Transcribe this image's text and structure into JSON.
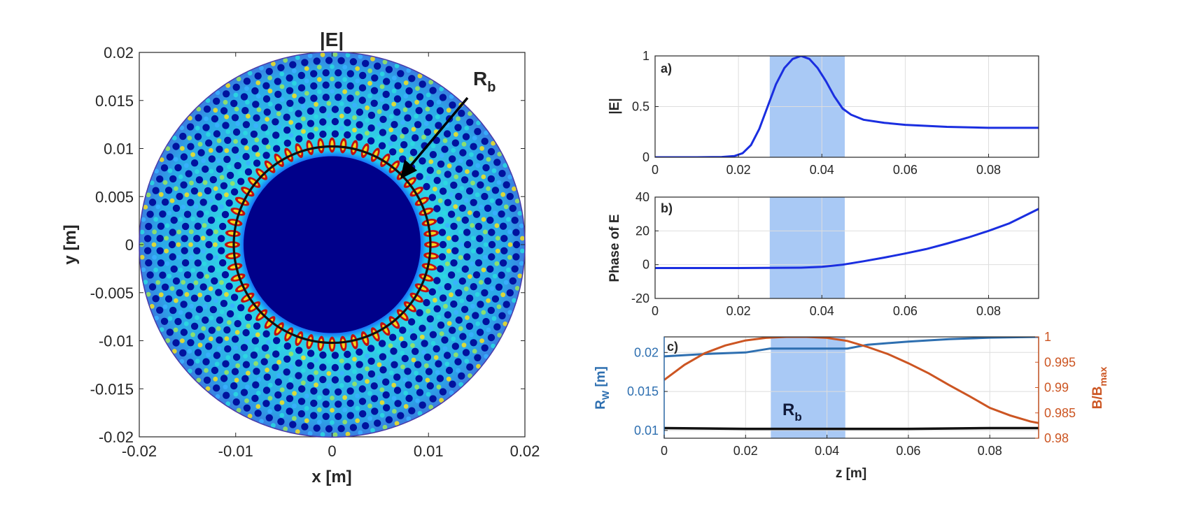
{
  "colors": {
    "curve_blue": "#1a2ee0",
    "rw_blue": "#2e6fb0",
    "bratio_orange": "#cc5522",
    "rb_black": "#111111",
    "band_fill": "#a9c9f5",
    "field_background": "#00008f"
  },
  "chart_data": [
    {
      "type": "heatmap",
      "title": "|E|",
      "xlabel": "x [m]",
      "ylabel": "y [m]",
      "xlim": [
        -0.02,
        0.02
      ],
      "ylim": [
        -0.02,
        0.02
      ],
      "xticks": [
        "-0.02",
        "-0.01",
        "0",
        "0.01",
        "0.02"
      ],
      "yticks": [
        "0.02",
        "0.015",
        "0.01",
        "0.005",
        "0",
        "-0.005",
        "-0.01",
        "-0.015",
        "-0.02"
      ],
      "wall_radius": 0.02,
      "Rb_radius": 0.0102,
      "colormap": "jet",
      "annotation": {
        "text": "R",
        "subscript": "b",
        "points_to": [
          0.0072,
          0.0078
        ]
      }
    },
    {
      "type": "line",
      "panel_label": "a)",
      "ylabel": "|E|",
      "xlabel": "",
      "xlim": [
        0,
        0.092
      ],
      "ylim": [
        0,
        1
      ],
      "xticks": [
        "0",
        "0.02",
        "0.04",
        "0.06",
        "0.08"
      ],
      "yticks": [
        "1",
        "0.5",
        "0"
      ],
      "highlight_band": [
        0.0275,
        0.0455
      ],
      "x": [
        0,
        0.01,
        0.016,
        0.019,
        0.021,
        0.023,
        0.025,
        0.027,
        0.029,
        0.031,
        0.033,
        0.035,
        0.037,
        0.039,
        0.041,
        0.043,
        0.045,
        0.047,
        0.05,
        0.055,
        0.06,
        0.07,
        0.08,
        0.092
      ],
      "y": [
        0.0,
        0.0,
        0.003,
        0.012,
        0.04,
        0.12,
        0.28,
        0.5,
        0.72,
        0.88,
        0.97,
        1.0,
        0.97,
        0.88,
        0.75,
        0.6,
        0.48,
        0.42,
        0.37,
        0.34,
        0.32,
        0.3,
        0.29,
        0.29
      ]
    },
    {
      "type": "line",
      "panel_label": "b)",
      "ylabel": "Phase of E",
      "xlabel": "",
      "xlim": [
        0,
        0.092
      ],
      "ylim": [
        -20,
        40
      ],
      "xticks": [
        "0",
        "0.02",
        "0.04",
        "0.06",
        "0.08"
      ],
      "yticks": [
        "40",
        "20",
        "0",
        "-20"
      ],
      "highlight_band": [
        0.0275,
        0.0455
      ],
      "x": [
        0,
        0.02,
        0.035,
        0.04,
        0.045,
        0.05,
        0.055,
        0.06,
        0.065,
        0.07,
        0.075,
        0.08,
        0.085,
        0.092
      ],
      "y": [
        -2,
        -2,
        -1.8,
        -1.3,
        0,
        2,
        4.2,
        6.6,
        9.2,
        12.5,
        16,
        20,
        24.5,
        33
      ]
    },
    {
      "type": "line",
      "panel_label": "c)",
      "xlabel": "z [m]",
      "ylabel": "R",
      "ylabel_sub": "W",
      "ylabel_unit": "[m]",
      "y2label": "B/B",
      "y2label_sub": "max",
      "xlim": [
        0,
        0.092
      ],
      "ylim": [
        0.009,
        0.022
      ],
      "y2lim": [
        0.98,
        1.0
      ],
      "xticks": [
        "0",
        "0.02",
        "0.04",
        "0.06",
        "0.08"
      ],
      "yticks": [
        "0.02",
        "0.015",
        "0.01"
      ],
      "y2ticks": [
        "1",
        "0.995",
        "0.99",
        "0.985",
        "0.98"
      ],
      "highlight_band": [
        0.0262,
        0.0445
      ],
      "annotation": {
        "text": "R",
        "subscript": "b"
      },
      "series": [
        {
          "axis": "left",
          "x": [
            0,
            0.01,
            0.02,
            0.026,
            0.045,
            0.05,
            0.06,
            0.07,
            0.08,
            0.092
          ],
          "y": [
            0.0195,
            0.0198,
            0.02,
            0.0205,
            0.0205,
            0.021,
            0.0214,
            0.0217,
            0.0219,
            0.022
          ]
        },
        {
          "axis": "right",
          "x": [
            0,
            0.005,
            0.01,
            0.015,
            0.02,
            0.025,
            0.03,
            0.035,
            0.04,
            0.045,
            0.05,
            0.055,
            0.06,
            0.065,
            0.07,
            0.075,
            0.08,
            0.085,
            0.09,
            0.092
          ],
          "y": [
            0.9915,
            0.9945,
            0.9968,
            0.9983,
            0.9993,
            0.9998,
            1.0,
            1.0,
            0.9998,
            0.9992,
            0.998,
            0.9966,
            0.9948,
            0.9928,
            0.9905,
            0.9883,
            0.986,
            0.9845,
            0.9833,
            0.983
          ]
        },
        {
          "axis": "left",
          "x": [
            0,
            0.02,
            0.04,
            0.06,
            0.08,
            0.092
          ],
          "y": [
            0.0103,
            0.0102,
            0.0102,
            0.0102,
            0.0103,
            0.0103
          ]
        }
      ]
    }
  ]
}
